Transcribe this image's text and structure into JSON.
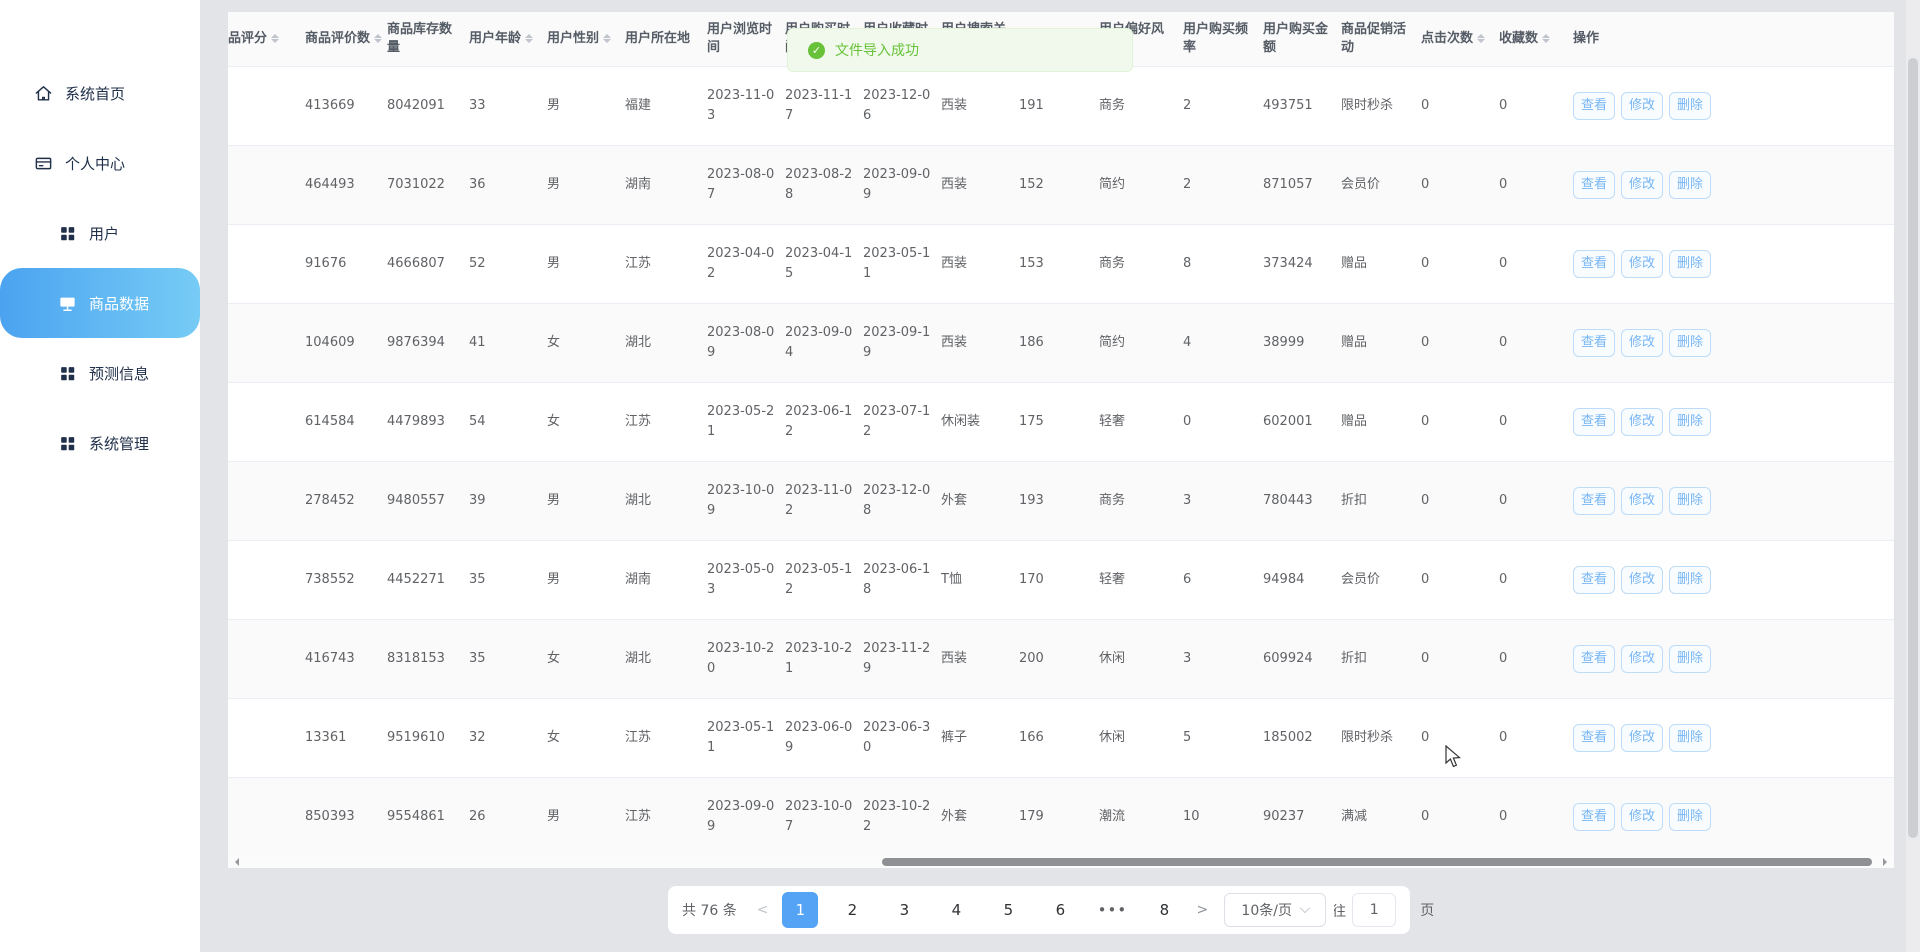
{
  "sidebar": {
    "items": [
      {
        "key": "home",
        "label": "系统首页",
        "icon": "home",
        "active": false,
        "indent": false
      },
      {
        "key": "profile",
        "label": "个人中心",
        "icon": "idcard",
        "active": false,
        "indent": false
      },
      {
        "key": "users",
        "label": "用户",
        "icon": "grid",
        "active": false,
        "indent": true
      },
      {
        "key": "products",
        "label": "商品数据",
        "icon": "monitor",
        "active": true,
        "indent": true
      },
      {
        "key": "forecast",
        "label": "预测信息",
        "icon": "grid",
        "active": false,
        "indent": true
      },
      {
        "key": "system",
        "label": "系统管理",
        "icon": "grid",
        "active": false,
        "indent": true
      }
    ]
  },
  "toast": {
    "icon": "✓",
    "message": "文件导入成功"
  },
  "table": {
    "columns": [
      {
        "label": "商品评分",
        "sortable": true
      },
      {
        "label": "商品评价数",
        "sortable": true
      },
      {
        "label": "商品库存数\n量",
        "sortable": false
      },
      {
        "label": "用户年龄",
        "sortable": true
      },
      {
        "label": "用户性别",
        "sortable": true
      },
      {
        "label": "用户所在地",
        "sortable": false
      },
      {
        "label": "用户浏览时\n间",
        "sortable": false
      },
      {
        "label": "用户购买时\n间",
        "sortable": false
      },
      {
        "label": "用户收藏时\n间",
        "sortable": false
      },
      {
        "label": "用户搜索关\n键词",
        "sortable": false
      },
      {
        "label": "",
        "sortable": false
      },
      {
        "label": "用户偏好风\n格",
        "sortable": false
      },
      {
        "label": "用户购买频\n率",
        "sortable": false
      },
      {
        "label": "用户购买金\n额",
        "sortable": false
      },
      {
        "label": "商品促销活\n动",
        "sortable": false
      },
      {
        "label": "点击次数",
        "sortable": true
      },
      {
        "label": "收藏数",
        "sortable": true
      },
      {
        "label": "操作",
        "sortable": false
      }
    ],
    "action_labels": [
      "查看",
      "修改",
      "删除"
    ],
    "rows": [
      [
        "",
        "413669",
        "8042091",
        "33",
        "男",
        "福建",
        "2023-11-03",
        "2023-11-17",
        "2023-12-06",
        "西装",
        "191",
        "商务",
        "2",
        "493751",
        "限时秒杀",
        "0",
        "0"
      ],
      [
        "",
        "464493",
        "7031022",
        "36",
        "男",
        "湖南",
        "2023-08-07",
        "2023-08-28",
        "2023-09-09",
        "西装",
        "152",
        "简约",
        "2",
        "871057",
        "会员价",
        "0",
        "0"
      ],
      [
        "",
        "91676",
        "4666807",
        "52",
        "男",
        "江苏",
        "2023-04-02",
        "2023-04-15",
        "2023-05-11",
        "西装",
        "153",
        "商务",
        "8",
        "373424",
        "赠品",
        "0",
        "0"
      ],
      [
        "",
        "104609",
        "9876394",
        "41",
        "女",
        "湖北",
        "2023-08-09",
        "2023-09-04",
        "2023-09-19",
        "西装",
        "186",
        "简约",
        "4",
        "38999",
        "赠品",
        "0",
        "0"
      ],
      [
        "",
        "614584",
        "4479893",
        "54",
        "女",
        "江苏",
        "2023-05-21",
        "2023-06-12",
        "2023-07-12",
        "休闲装",
        "175",
        "轻奢",
        "0",
        "602001",
        "赠品",
        "0",
        "0"
      ],
      [
        "",
        "278452",
        "9480557",
        "39",
        "男",
        "湖北",
        "2023-10-09",
        "2023-11-02",
        "2023-12-08",
        "外套",
        "193",
        "商务",
        "3",
        "780443",
        "折扣",
        "0",
        "0"
      ],
      [
        "",
        "738552",
        "4452271",
        "35",
        "男",
        "湖南",
        "2023-05-03",
        "2023-05-12",
        "2023-06-18",
        "T恤",
        "170",
        "轻奢",
        "6",
        "94984",
        "会员价",
        "0",
        "0"
      ],
      [
        "",
        "416743",
        "8318153",
        "35",
        "女",
        "湖北",
        "2023-10-20",
        "2023-10-21",
        "2023-11-29",
        "西装",
        "200",
        "休闲",
        "3",
        "609924",
        "折扣",
        "0",
        "0"
      ],
      [
        "",
        "13361",
        "9519610",
        "32",
        "女",
        "江苏",
        "2023-05-11",
        "2023-06-09",
        "2023-06-30",
        "裤子",
        "166",
        "休闲",
        "5",
        "185002",
        "限时秒杀",
        "0",
        "0"
      ],
      [
        "",
        "850393",
        "9554861",
        "26",
        "男",
        "江苏",
        "2023-09-09",
        "2023-10-07",
        "2023-10-22",
        "外套",
        "179",
        "潮流",
        "10",
        "90237",
        "满减",
        "0",
        "0"
      ]
    ]
  },
  "pagination": {
    "total": "共 76 条",
    "prev": "<",
    "next": ">",
    "pages": [
      "1",
      "2",
      "3",
      "4",
      "5",
      "6",
      "•••",
      "8"
    ],
    "active_page": "1",
    "page_size": "10条/页",
    "jump_prefix": "前往",
    "jump_value": "1",
    "jump_suffix": "页"
  },
  "colors": {
    "accent_blue": "#55a3f4",
    "sidebar_gradient_start": "#4ba3f0",
    "sidebar_gradient_end": "#76ccf5",
    "toast_green": "#67c23a",
    "toast_bg": "#f0f9eb",
    "action_button_blue": "#77b6f4",
    "header_bg": "#fafafa",
    "stripe_bg": "#fafafa"
  }
}
